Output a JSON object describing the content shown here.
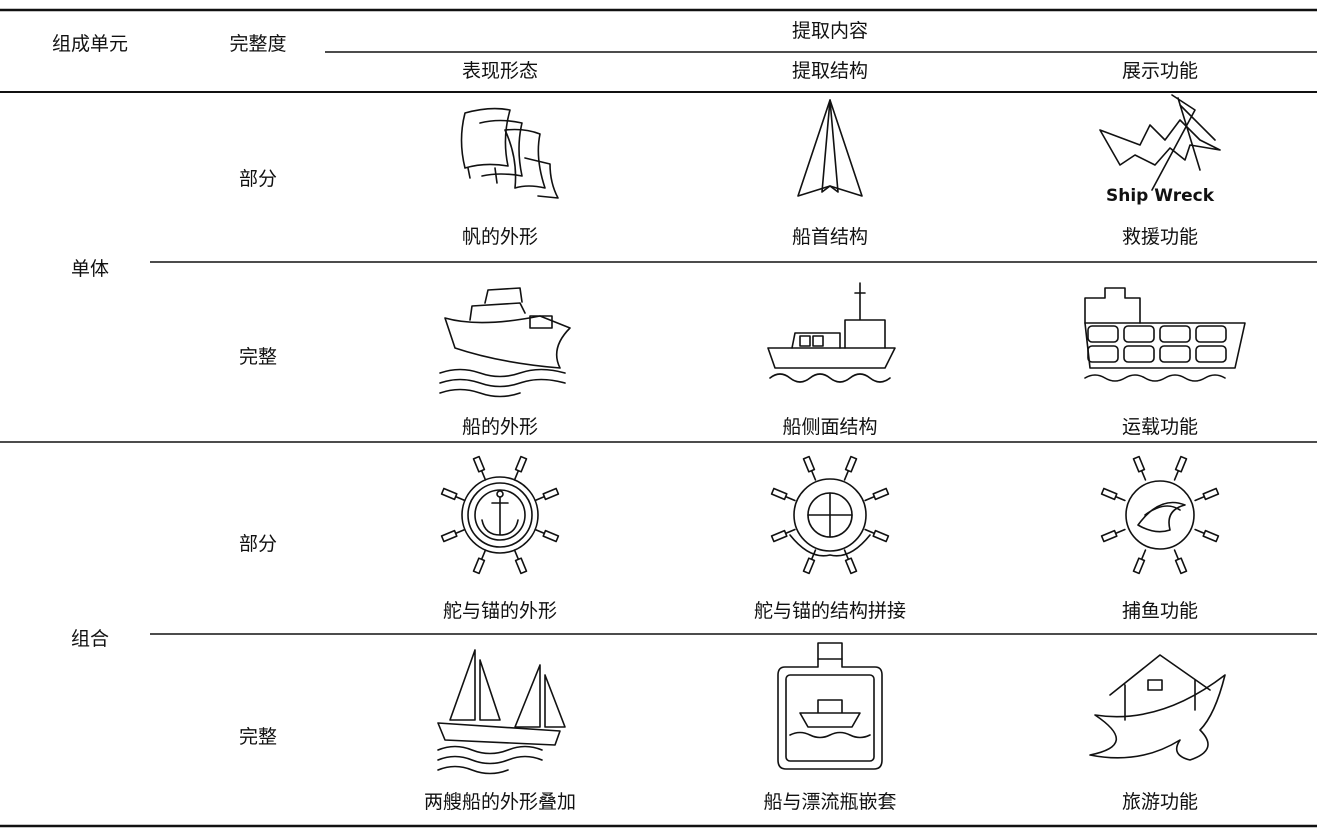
{
  "header": {
    "columns": [
      "组成单元",
      "完整度"
    ],
    "group": "提取内容",
    "subcolumns": [
      "表现形态",
      "提取结构",
      "展示功能"
    ]
  },
  "rows": [
    {
      "unit": "单体",
      "items": [
        {
          "completeness": "部分",
          "cells": [
            "帆的外形",
            "船首结构",
            "救援功能"
          ]
        },
        {
          "completeness": "完整",
          "cells": [
            "船的外形",
            "船侧面结构",
            "运载功能"
          ]
        }
      ]
    },
    {
      "unit": "组合",
      "items": [
        {
          "completeness": "部分",
          "cells": [
            "舵与锚的外形",
            "舵与锚的结构拼接",
            "捕鱼功能"
          ]
        },
        {
          "completeness": "完整",
          "cells": [
            "两艘船的外形叠加",
            "船与漂流瓶嵌套",
            "旅游功能"
          ]
        }
      ]
    }
  ],
  "icon_text": "Ship Wreck"
}
